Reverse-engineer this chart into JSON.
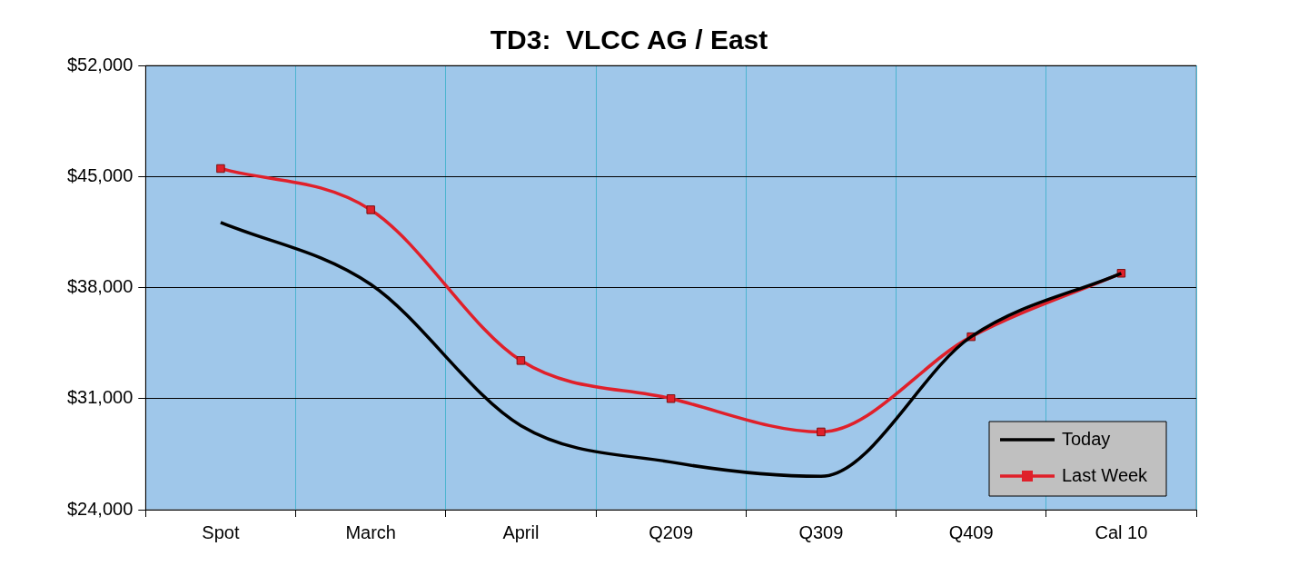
{
  "chart_data": {
    "type": "line",
    "title": "TD3:  VLCC AG / East",
    "categories": [
      "Spot",
      "March",
      "April",
      "Q209",
      "Q309",
      "Q409",
      "Cal 10"
    ],
    "series": [
      {
        "name": "Today",
        "color": "#000000",
        "marker": "none",
        "values": [
          42100,
          38200,
          29300,
          27000,
          26100,
          34900,
          38900
        ]
      },
      {
        "name": "Last Week",
        "color": "#e0202a",
        "marker": "square",
        "values": [
          45500,
          42900,
          33400,
          31000,
          28900,
          34900,
          38900
        ]
      }
    ],
    "ylim": [
      24000,
      52000
    ],
    "yticks": [
      {
        "value": 24000,
        "label": "$24,000"
      },
      {
        "value": 31000,
        "label": "$31,000"
      },
      {
        "value": 38000,
        "label": "$38,000"
      },
      {
        "value": 45000,
        "label": "$45,000"
      },
      {
        "value": 52000,
        "label": "$52,000"
      }
    ],
    "grid": true,
    "legend": "bottom right"
  }
}
